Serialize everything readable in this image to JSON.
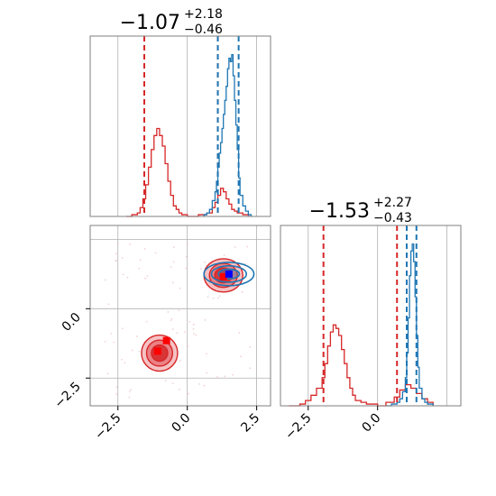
{
  "chart_data": {
    "type": "corner",
    "colors": {
      "series_a": "#1f77b4",
      "series_b": "#d62728",
      "grid": "#b0b0b0",
      "frame": "#7f7f7f"
    },
    "param_ranges": {
      "x": [
        -3.5,
        3.0
      ],
      "y": [
        -3.5,
        3.0
      ]
    },
    "ticks": [
      -2.5,
      0.0,
      2.5
    ],
    "tick_labels": [
      "−2.5",
      "0.0",
      "2.5"
    ],
    "titles": [
      {
        "median": "−1.07",
        "plus": "+2.18",
        "minus": "−0.46"
      },
      {
        "median": "−1.53",
        "plus": "+2.27",
        "minus": "−0.43"
      }
    ],
    "panels": [
      {
        "id": "hist-x",
        "type": "step-histogram",
        "series": [
          {
            "color": "blue",
            "bins": [
              0.6,
              0.7,
              0.8,
              0.9,
              1.0,
              1.05,
              1.1,
              1.15,
              1.2,
              1.25,
              1.3,
              1.35,
              1.4,
              1.45,
              1.5,
              1.55,
              1.6,
              1.65,
              1.7,
              1.75,
              1.8,
              1.85,
              1.9,
              2.0,
              2.1,
              2.2,
              2.3
            ],
            "heights": [
              1,
              2,
              4,
              9,
              14,
              20,
              28,
              36,
              42,
              50,
              58,
              66,
              74,
              84,
              90,
              88,
              92,
              80,
              66,
              52,
              38,
              22,
              12,
              6,
              3,
              1,
              0
            ]
          }
        ],
        "series_b": {
          "bins": [
            -2.2,
            -2.0,
            -1.8,
            -1.7,
            -1.6,
            -1.5,
            -1.4,
            -1.3,
            -1.2,
            -1.1,
            -1.0,
            -0.9,
            -0.8,
            -0.7,
            -0.6,
            -0.5,
            -0.4,
            -0.3,
            -0.2,
            0.0,
            0.4,
            0.7,
            0.9,
            1.0,
            1.1,
            1.2,
            1.3,
            1.4,
            1.5,
            1.6,
            1.7,
            1.8,
            2.0,
            2.2
          ],
          "heights": [
            0,
            1,
            2,
            5,
            10,
            18,
            28,
            38,
            46,
            50,
            46,
            40,
            30,
            20,
            12,
            6,
            4,
            2,
            1,
            0,
            1,
            2,
            5,
            8,
            12,
            16,
            14,
            10,
            7,
            4,
            3,
            2,
            1,
            0
          ]
        },
        "quantiles_a": [
          1.1,
          1.85
        ],
        "quantiles_b": [
          -1.55,
          1.1
        ]
      },
      {
        "id": "hist-y",
        "type": "step-histogram",
        "series": [
          {
            "color": "blue",
            "bins": [
              0.3,
              0.5,
              0.7,
              0.8,
              0.9,
              1.0,
              1.05,
              1.1,
              1.15,
              1.2,
              1.25,
              1.3,
              1.35,
              1.4,
              1.45,
              1.5,
              1.6,
              1.7,
              1.8,
              2.0
            ],
            "heights": [
              0,
              1,
              2,
              4,
              8,
              16,
              30,
              50,
              74,
              88,
              92,
              82,
              62,
              40,
              22,
              10,
              4,
              2,
              1,
              0
            ]
          }
        ],
        "series_b": {
          "bins": [
            -3.2,
            -2.8,
            -2.6,
            -2.4,
            -2.2,
            -2.0,
            -1.9,
            -1.8,
            -1.7,
            -1.6,
            -1.5,
            -1.4,
            -1.3,
            -1.2,
            -1.1,
            -1.0,
            -0.9,
            -0.8,
            -0.6,
            -0.4,
            0.0,
            0.3,
            0.6,
            0.8,
            1.0,
            1.2,
            1.4,
            1.6,
            1.8,
            2.0
          ],
          "heights": [
            0,
            1,
            3,
            6,
            10,
            16,
            24,
            34,
            42,
            46,
            44,
            40,
            32,
            24,
            16,
            10,
            6,
            3,
            2,
            1,
            0,
            2,
            5,
            9,
            12,
            10,
            7,
            4,
            2,
            0
          ]
        },
        "quantiles_a": [
          1.05,
          1.4
        ],
        "quantiles_b": [
          -1.95,
          0.7
        ]
      },
      {
        "id": "scatter-2d",
        "type": "contour",
        "red_clusters": [
          {
            "cx": -1.0,
            "cy": -1.6,
            "rx": 0.65,
            "ry": 0.65
          },
          {
            "cx": 1.3,
            "cy": 1.2,
            "rx": 0.7,
            "ry": 0.6
          }
        ],
        "blue_cluster": {
          "cx": 1.5,
          "cy": 1.25,
          "rx": 0.9,
          "ry": 0.42
        },
        "markers_red": [
          {
            "x": -1.07,
            "y": -1.53
          },
          {
            "x": -0.75,
            "y": -1.15
          },
          {
            "x": 1.3,
            "y": 1.15
          }
        ],
        "markers_blue": [
          {
            "x": 1.5,
            "y": 1.25
          }
        ]
      }
    ]
  }
}
